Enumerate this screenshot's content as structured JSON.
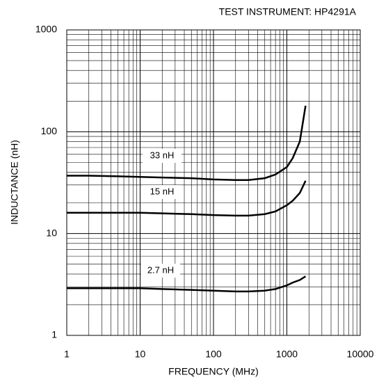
{
  "chart_data": {
    "type": "line",
    "title": "TEST INSTRUMENT: HP4291A",
    "x_label": "FREQUENCY (MHz)",
    "y_label": "INDUCTANCE (nH)",
    "log_x": true,
    "log_y": true,
    "grid": true,
    "xlim": [
      1,
      10000
    ],
    "xticks": [
      1,
      10,
      100,
      1000,
      10000
    ],
    "ylim": [
      1,
      1000
    ],
    "yticks": [
      1,
      10,
      100,
      1000
    ],
    "x": [
      1,
      2,
      5,
      10,
      20,
      50,
      100,
      200,
      300,
      500,
      700,
      1000,
      1200,
      1500,
      1800
    ],
    "series": [
      {
        "name": "33 nH",
        "color": "#000000",
        "values": [
          37,
          37,
          36.5,
          36,
          35.5,
          35,
          34,
          33.5,
          33.5,
          35,
          38,
          45,
          55,
          80,
          180
        ]
      },
      {
        "name": "15 nH",
        "color": "#000000",
        "values": [
          16,
          16,
          16,
          16,
          15.8,
          15.5,
          15.2,
          15,
          15,
          15.5,
          16.5,
          19,
          21,
          25,
          33
        ]
      },
      {
        "name": "2.7 nH",
        "color": "#000000",
        "values": [
          2.9,
          2.9,
          2.9,
          2.9,
          2.85,
          2.8,
          2.75,
          2.7,
          2.7,
          2.75,
          2.85,
          3.1,
          3.3,
          3.5,
          3.8
        ]
      }
    ]
  }
}
